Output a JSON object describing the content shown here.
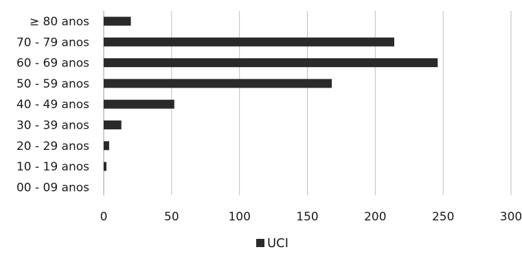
{
  "chart_data": {
    "type": "bar",
    "orientation": "horizontal",
    "categories": [
      "≥ 80 anos",
      "70 - 79 anos",
      "60 - 69 anos",
      "50 - 59 anos",
      "40 - 49 anos",
      "30 - 39 anos",
      "20 - 29 anos",
      "10 - 19 anos",
      "00 - 09 anos"
    ],
    "series": [
      {
        "name": "UCI",
        "color": "#2a2a2a",
        "values": [
          20,
          214,
          246,
          168,
          52,
          13,
          4,
          2,
          0
        ]
      }
    ],
    "xlim": [
      0,
      300
    ],
    "xticks": [
      0,
      50,
      100,
      150,
      200,
      250,
      300
    ],
    "grid": "vertical",
    "legend_position": "bottom-center"
  }
}
